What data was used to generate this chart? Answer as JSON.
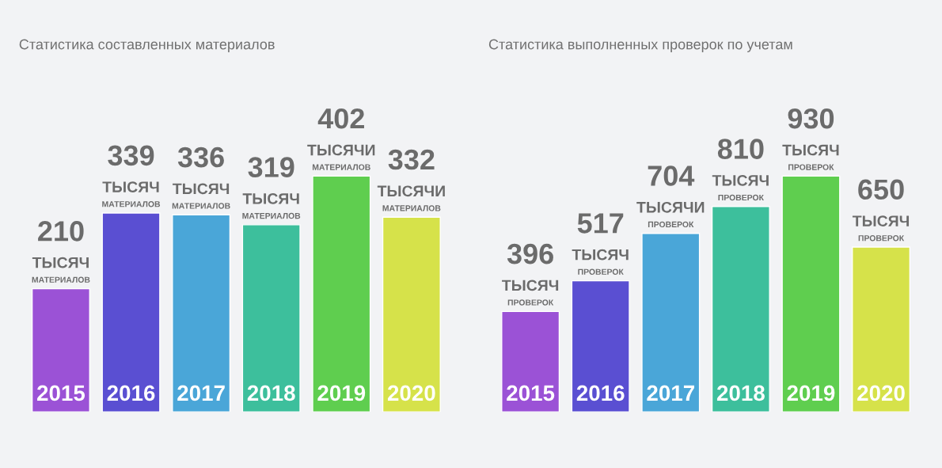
{
  "chart_data": [
    {
      "type": "bar",
      "title": "Статистика составленных материалов",
      "categories": [
        "2015",
        "2016",
        "2017",
        "2018",
        "2019",
        "2020"
      ],
      "values": [
        210,
        339,
        336,
        319,
        402,
        332
      ],
      "colors": [
        "#9b52d6",
        "#5a4fd2",
        "#4aa6d8",
        "#3dbf9c",
        "#5fce4f",
        "#d6e24a"
      ],
      "value_labels": [
        "210 ТЫСЯЧ МАТЕРИАЛОВ",
        "339 ТЫСЯЧ МАТЕРИАЛОВ",
        "336 ТЫСЯЧ МАТЕРИАЛОВ",
        "319 ТЫСЯЧ МАТЕРИАЛОВ",
        "402 ТЫСЯЧИ МАТЕРИАЛОВ",
        "332 ТЫСЯЧИ МАТЕРИАЛОВ"
      ]
    },
    {
      "type": "bar",
      "title": "Статистика выполненных проверок по учетам",
      "categories": [
        "2015",
        "2016",
        "2017",
        "2018",
        "2019",
        "2020"
      ],
      "values": [
        396,
        517,
        704,
        810,
        930,
        650
      ],
      "colors": [
        "#9b52d6",
        "#5a4fd2",
        "#4aa6d8",
        "#3dbf9c",
        "#5fce4f",
        "#d6e24a"
      ],
      "value_labels": [
        "396 ТЫСЯЧ ПРОВЕРОК",
        "517 ТЫСЯЧ ПРОВЕРОК",
        "704 ТЫСЯЧИ ПРОВЕРОК",
        "810 ТЫСЯЧ ПРОВЕРОК",
        "930 ТЫСЯЧ ПРОВЕРОК",
        "650 ТЫСЯЧ ПРОВЕРОК"
      ]
    }
  ]
}
